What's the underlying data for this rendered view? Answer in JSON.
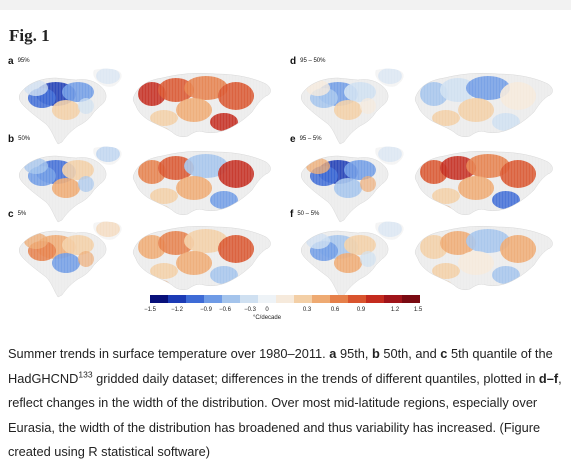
{
  "figure": {
    "title": "Fig. 1"
  },
  "panels": [
    {
      "letter": "a",
      "label": "95%"
    },
    {
      "letter": "d",
      "label": "95 – 50%"
    },
    {
      "letter": "b",
      "label": "50%"
    },
    {
      "letter": "e",
      "label": "95 – 5%"
    },
    {
      "letter": "c",
      "label": "5%"
    },
    {
      "letter": "f",
      "label": "50 – 5%"
    }
  ],
  "legend": {
    "ticks": [
      "−1.5",
      "−1.2",
      "−0.9",
      "−0.6",
      "−0.3",
      "0",
      "0.3",
      "0.6",
      "0.9",
      "1.2",
      "1.5"
    ],
    "unit": "°C/decade",
    "colors": [
      "#08107a",
      "#1c3bb5",
      "#3e6bd6",
      "#6f9be6",
      "#a4c4ec",
      "#cfe0f1",
      "#eef3f7",
      "#f6eadc",
      "#f3cfa6",
      "#eeaa72",
      "#e6804a",
      "#d9542e",
      "#c42b1e",
      "#a0141a",
      "#7a0a12"
    ]
  },
  "caption": {
    "t1": "Summer trends in surface temperature over 1980–2011. ",
    "b1": "a",
    "t2": " 95th, ",
    "b2": "b",
    "t3": " 50th, and ",
    "b3": "c",
    "t4": " 5th quantile of the HadGHCND",
    "ref": "133",
    "t5": " gridded daily dataset; differences in the trends of different quantiles, plotted in ",
    "b4": "d–f",
    "t6": ", reflect changes in the width of the distribution. Over most mid-latitude regions, especially over Eurasia, the width of the distribution has broadened and thus variability has increased. (Figure created using R statistical software)"
  }
}
